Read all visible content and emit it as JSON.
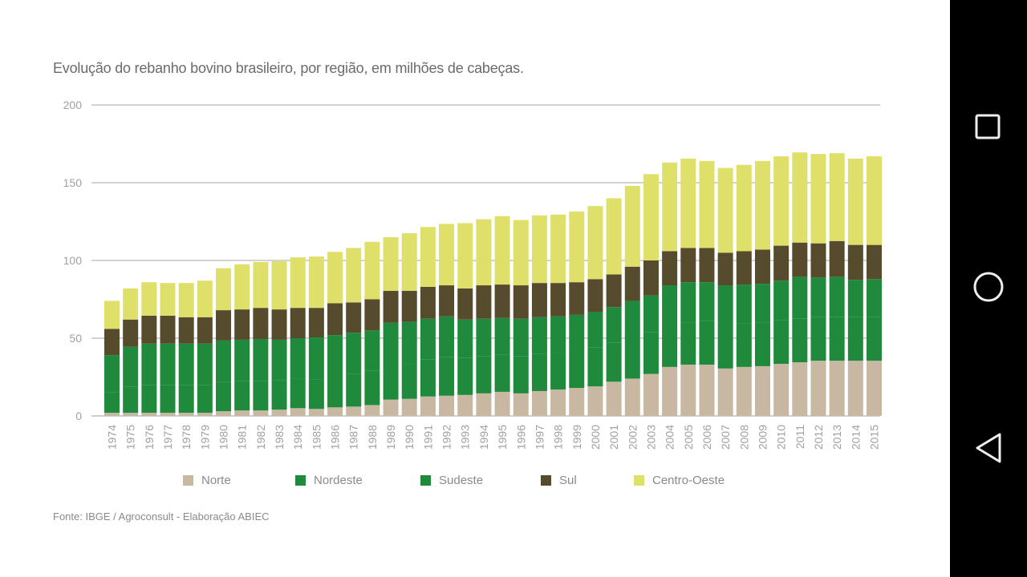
{
  "navbar": {
    "buttons": [
      {
        "name": "recents",
        "icon": "square-icon"
      },
      {
        "name": "home",
        "icon": "circle-icon"
      },
      {
        "name": "back",
        "icon": "triangle-back-icon"
      }
    ]
  },
  "chart_data": {
    "type": "bar",
    "stacked": true,
    "title": "Evolução do rebanho bovino brasileiro, por região, em milhões de cabeças.",
    "source": "Fonte: IBGE / Agroconsult - Elaboração ABIEC",
    "xlabel": "",
    "ylabel": "",
    "ylim": [
      0,
      200
    ],
    "yticks": [
      0,
      50,
      100,
      150,
      200
    ],
    "grid": true,
    "legend_position": "bottom",
    "categories": [
      "1974",
      "1975",
      "1976",
      "1977",
      "1978",
      "1979",
      "1980",
      "1981",
      "1982",
      "1983",
      "1984",
      "1985",
      "1986",
      "1987",
      "1988",
      "1989",
      "1990",
      "1991",
      "1992",
      "1993",
      "1994",
      "1995",
      "1996",
      "1997",
      "1998",
      "1999",
      "2000",
      "2001",
      "2002",
      "2003",
      "2004",
      "2005",
      "2006",
      "2007",
      "2008",
      "2009",
      "2010",
      "2011",
      "2012",
      "2013",
      "2014",
      "2015"
    ],
    "series": [
      {
        "name": "Norte",
        "color": "#c8b8a2",
        "values": [
          2,
          2,
          2,
          2,
          2,
          2,
          3,
          3.5,
          3.5,
          4,
          5,
          4.5,
          5.5,
          6,
          7,
          10.5,
          11,
          12.5,
          13,
          13.5,
          14.5,
          15.5,
          14.5,
          16,
          17,
          18,
          19,
          22,
          24,
          27,
          31.5,
          33,
          33,
          30.5,
          31.5,
          32,
          33.5,
          34.5,
          35.5,
          35.5,
          35.5,
          35.5
        ]
      },
      {
        "name": "Nordeste",
        "color": "#1f8a3c",
        "values": [
          13,
          17,
          18,
          18,
          18,
          18,
          19,
          19,
          19,
          19,
          19,
          19,
          20,
          21,
          22,
          23,
          23,
          24,
          25,
          24,
          24,
          24,
          24,
          24,
          24,
          24,
          25,
          25,
          26,
          27,
          27,
          27,
          28,
          28,
          28,
          28,
          28,
          28,
          28,
          28,
          28,
          28
        ]
      },
      {
        "name": "Sudeste",
        "color": "#1f8a3c",
        "values": [
          24,
          25.5,
          26.5,
          26.5,
          26.5,
          26.5,
          26.5,
          26.5,
          27,
          26,
          26,
          27,
          26.5,
          26.5,
          26,
          26.5,
          26.5,
          26,
          26,
          24.5,
          24,
          23.5,
          24,
          23.5,
          23,
          23,
          23,
          23,
          24,
          23.5,
          25.5,
          26,
          25,
          25.5,
          25,
          25,
          25.5,
          27,
          25.5,
          26,
          24,
          24.5
        ]
      },
      {
        "name": "Sul",
        "color": "#574b2e",
        "values": [
          17,
          17.5,
          18,
          18,
          17,
          17,
          19.5,
          19.5,
          20,
          19.5,
          19.5,
          19,
          20.5,
          19.5,
          20,
          20.5,
          20,
          20.5,
          20,
          20,
          21.5,
          21.5,
          21.5,
          22,
          21.5,
          21,
          21,
          21,
          22,
          22.5,
          22,
          22,
          22,
          21,
          21.5,
          22,
          22.5,
          22,
          22,
          23,
          22.5,
          22
        ]
      },
      {
        "name": "Centro-Oeste",
        "color": "#dfe06a",
        "values": [
          18,
          20,
          21.5,
          21,
          22,
          23.5,
          27,
          29,
          29.5,
          31,
          32.5,
          33,
          33,
          35,
          37,
          34.5,
          37,
          38.5,
          39.5,
          42,
          42.5,
          44,
          42,
          43.5,
          44,
          45.5,
          47,
          49,
          52,
          55.5,
          57,
          57.5,
          56,
          54.5,
          55.5,
          57,
          57.5,
          58,
          57.5,
          56.5,
          55.5,
          57
        ]
      }
    ]
  }
}
